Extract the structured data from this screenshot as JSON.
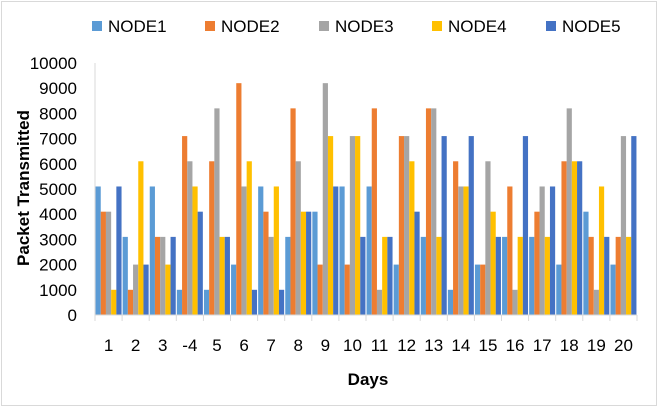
{
  "chart_data": {
    "type": "bar",
    "xlabel": "Days",
    "ylabel": "Packet Transmitted",
    "ylim": [
      0,
      10000
    ],
    "yticks": [
      0,
      1000,
      2000,
      3000,
      4000,
      5000,
      6000,
      7000,
      8000,
      9000,
      10000
    ],
    "grid": false,
    "legend": "top",
    "categories": [
      "1",
      "2",
      "3",
      "-4",
      "5",
      "6",
      "7",
      "8",
      "9",
      "10",
      "11",
      "12",
      "13",
      "14",
      "15",
      "16",
      "17",
      "18",
      "19",
      "20"
    ],
    "series": [
      {
        "name": "NODE1",
        "color": "#5b9bd5",
        "values": [
          5100,
          3100,
          5100,
          1000,
          1000,
          2000,
          5100,
          3100,
          4100,
          5100,
          5100,
          2000,
          3100,
          1000,
          2000,
          3100,
          3100,
          2000,
          4100,
          2000
        ]
      },
      {
        "name": "NODE2",
        "color": "#ed7d31",
        "values": [
          4100,
          1000,
          3100,
          7100,
          6100,
          9200,
          4100,
          8200,
          2000,
          2000,
          8200,
          7100,
          8200,
          6100,
          2000,
          5100,
          4100,
          6100,
          3100,
          3100
        ]
      },
      {
        "name": "NODE3",
        "color": "#a5a5a5",
        "values": [
          4100,
          2000,
          3100,
          6100,
          8200,
          5100,
          3100,
          6100,
          9200,
          7100,
          1000,
          7100,
          8200,
          5100,
          6100,
          1000,
          5100,
          8200,
          1000,
          7100
        ]
      },
      {
        "name": "NODE4",
        "color": "#ffc000",
        "values": [
          1000,
          6100,
          2000,
          5100,
          3100,
          6100,
          5100,
          4100,
          7100,
          7100,
          3100,
          6100,
          3100,
          5100,
          4100,
          3100,
          3100,
          6100,
          5100,
          3100
        ]
      },
      {
        "name": "NODE5",
        "color": "#4472c4",
        "values": [
          5100,
          2000,
          3100,
          4100,
          3100,
          1000,
          1000,
          4100,
          5100,
          3100,
          3100,
          4100,
          7100,
          7100,
          3100,
          7100,
          5100,
          6100,
          3100,
          7100
        ]
      }
    ]
  }
}
